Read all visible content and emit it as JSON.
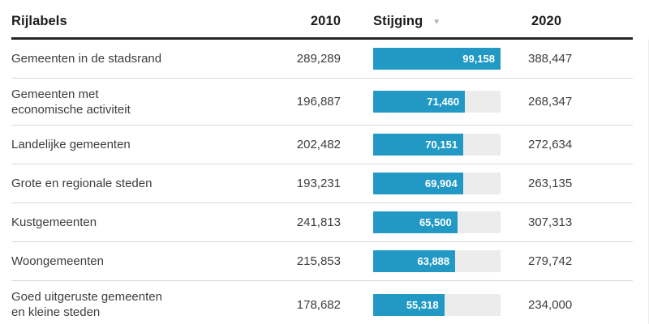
{
  "header": {
    "row_label": "Rijlabels",
    "col_2010": "2010",
    "col_stijging": "Stijging",
    "sort_icon": "sort-descending-triangle",
    "sort_glyph": "▼",
    "col_2020": "2020"
  },
  "colors": {
    "bar_fill": "#2299c5",
    "bar_track": "#ececec",
    "header_rule": "#262626",
    "row_separator": "#d9d9d9",
    "bar_value_text": "#ffffff"
  },
  "chart_data": {
    "type": "table",
    "title": "",
    "columns": [
      "Rijlabels",
      "2010",
      "Stijging",
      "2020"
    ],
    "bar_column": "Stijging",
    "bar_max": 99158,
    "sort": {
      "column": "Stijging",
      "direction": "descending"
    },
    "rows": [
      {
        "label": "Gemeenten in de stadsrand",
        "v2010": "289,289",
        "stijging": 99158,
        "stijging_label": "99,158",
        "v2020": "388,447"
      },
      {
        "label": "Gemeenten met\neconomische activiteit",
        "v2010": "196,887",
        "stijging": 71460,
        "stijging_label": "71,460",
        "v2020": "268,347"
      },
      {
        "label": "Landelijke gemeenten",
        "v2010": "202,482",
        "stijging": 70151,
        "stijging_label": "70,151",
        "v2020": "272,634"
      },
      {
        "label": "Grote en regionale steden",
        "v2010": "193,231",
        "stijging": 69904,
        "stijging_label": "69,904",
        "v2020": "263,135"
      },
      {
        "label": "Kustgemeenten",
        "v2010": "241,813",
        "stijging": 65500,
        "stijging_label": "65,500",
        "v2020": "307,313"
      },
      {
        "label": "Woongemeenten",
        "v2010": "215,853",
        "stijging": 63888,
        "stijging_label": "63,888",
        "v2020": "279,742"
      },
      {
        "label": "Goed uitgeruste gemeenten\nen kleine steden",
        "v2010": "178,682",
        "stijging": 55318,
        "stijging_label": "55,318",
        "v2020": "234,000"
      }
    ]
  }
}
